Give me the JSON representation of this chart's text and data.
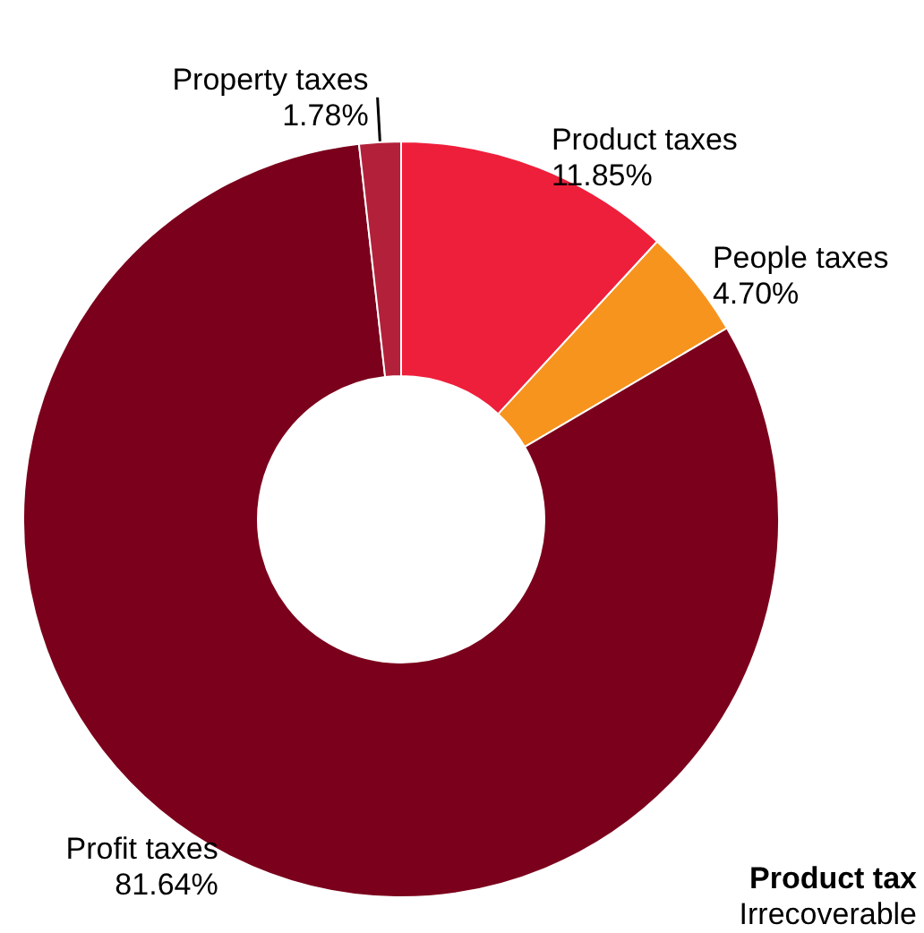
{
  "chart_data": {
    "type": "donut",
    "categories": [
      "Product taxes",
      "People taxes",
      "Profit taxes",
      "Property taxes"
    ],
    "values": [
      11.85,
      4.7,
      81.64,
      1.78
    ],
    "colors": [
      "#ee1f3b",
      "#f7941d",
      "#7b001c",
      "#b3203a"
    ],
    "value_labels": [
      "11.85%",
      "4.70%",
      "81.64%",
      "1.78%"
    ],
    "legend": false,
    "annotations": [
      "Product tax",
      "Irrecoverable"
    ]
  }
}
